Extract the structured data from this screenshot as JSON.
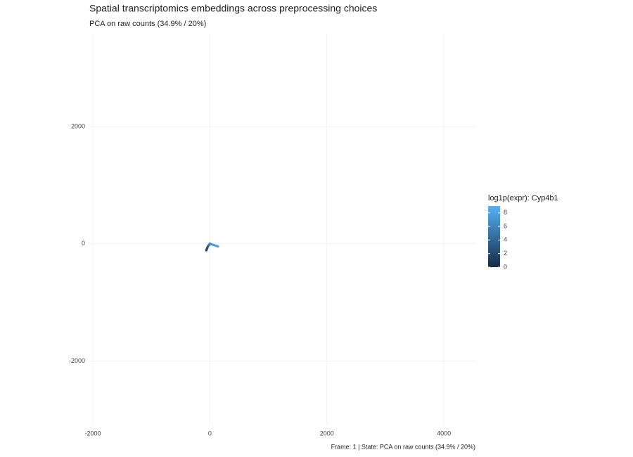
{
  "chart_data": {
    "type": "scatter",
    "title": "Spatial transcriptomics embeddings across preprocessing choices",
    "subtitle": "PCA on raw counts (34.9% / 20%)",
    "caption": "Frame: 1 | State: PCA on raw counts (34.9% / 20%)",
    "xlim": [
      -2060,
      4540
    ],
    "xticks": [
      -2000,
      0,
      2000,
      4000
    ],
    "ylim": [
      -3100,
      3600
    ],
    "yticks": [
      -2000,
      0,
      2000
    ],
    "grid": true,
    "series": [
      {
        "x": [
          -60,
          -55,
          -50,
          -45,
          -40,
          -35,
          -30,
          -20,
          -10,
          0,
          10,
          20,
          35,
          50,
          65,
          80,
          95,
          110,
          125,
          140
        ],
        "values": [
          -110,
          -95,
          -85,
          -70,
          -60,
          -50,
          -40,
          -25,
          -10,
          5,
          0,
          -5,
          -10,
          -15,
          -20,
          -25,
          -30,
          -35,
          -40,
          -45
        ],
        "expr": [
          1,
          2,
          1.5,
          2,
          3,
          2.5,
          3,
          4,
          5,
          6,
          7,
          6.5,
          7,
          7.5,
          8,
          7,
          8,
          8.5,
          7.5,
          8
        ]
      }
    ],
    "colorbar": {
      "title": "log1p(expr): Cyp4b1",
      "low": "#132B43",
      "high": "#56B1F7",
      "lim": [
        0,
        9
      ],
      "ticks": [
        0,
        2,
        4,
        6,
        8
      ]
    }
  }
}
